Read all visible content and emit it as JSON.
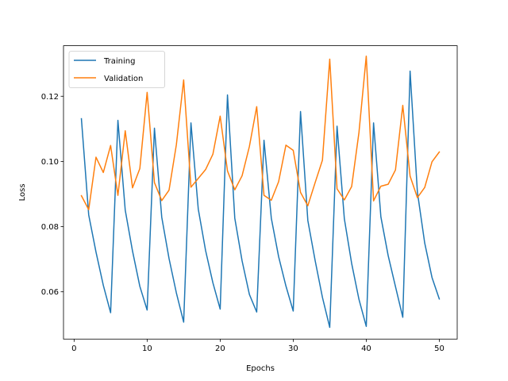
{
  "chart_data": {
    "type": "line",
    "title": "",
    "xlabel": "Epochs",
    "ylabel": "Loss",
    "xlim": [
      -1.45,
      52.45
    ],
    "ylim": [
      0.0455,
      0.1355
    ],
    "xticks": [
      0,
      10,
      20,
      30,
      40,
      50
    ],
    "yticks": [
      0.06,
      0.08,
      0.1,
      0.12
    ],
    "ytick_labels": [
      "0.06",
      "0.08",
      "0.10",
      "0.12"
    ],
    "grid": false,
    "legend": "top-left",
    "x": [
      1,
      2,
      3,
      4,
      5,
      6,
      7,
      8,
      9,
      10,
      11,
      12,
      13,
      14,
      15,
      16,
      17,
      18,
      19,
      20,
      21,
      22,
      23,
      24,
      25,
      26,
      27,
      28,
      29,
      30,
      31,
      32,
      33,
      34,
      35,
      36,
      37,
      38,
      39,
      40,
      41,
      42,
      43,
      44,
      45,
      46,
      47,
      48,
      49,
      50
    ],
    "series": [
      {
        "name": "Training",
        "color": "#1f77b4",
        "values": [
          0.1131,
          0.0836,
          0.0722,
          0.062,
          0.0536,
          0.1126,
          0.0851,
          0.0725,
          0.0617,
          0.0544,
          0.1102,
          0.0829,
          0.0702,
          0.0597,
          0.0507,
          0.1118,
          0.0854,
          0.0727,
          0.0628,
          0.0547,
          0.1204,
          0.0826,
          0.0695,
          0.0592,
          0.0538,
          0.1065,
          0.0826,
          0.0708,
          0.0618,
          0.0541,
          0.1153,
          0.0819,
          0.0696,
          0.0583,
          0.0491,
          0.1108,
          0.0824,
          0.0687,
          0.0577,
          0.0494,
          0.1118,
          0.083,
          0.0711,
          0.0616,
          0.0522,
          0.1277,
          0.0906,
          0.075,
          0.0644,
          0.0578
        ]
      },
      {
        "name": "Validation",
        "color": "#ff7f0e",
        "values": [
          0.0895,
          0.0852,
          0.1013,
          0.0966,
          0.1049,
          0.0896,
          0.1094,
          0.0919,
          0.0978,
          0.1212,
          0.0935,
          0.088,
          0.0912,
          0.1051,
          0.125,
          0.0921,
          0.0948,
          0.0975,
          0.1022,
          0.1139,
          0.0971,
          0.0913,
          0.0956,
          0.1046,
          0.1168,
          0.0896,
          0.0881,
          0.0938,
          0.105,
          0.1034,
          0.0905,
          0.0864,
          0.0935,
          0.1004,
          0.1314,
          0.0916,
          0.0882,
          0.0923,
          0.1089,
          0.1323,
          0.0879,
          0.0924,
          0.093,
          0.0974,
          0.1172,
          0.0955,
          0.0889,
          0.092,
          0.0999,
          0.1029
        ]
      }
    ]
  }
}
